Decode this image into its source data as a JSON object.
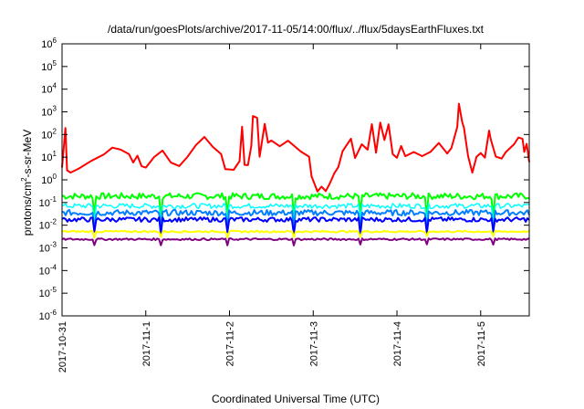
{
  "chart_data": {
    "type": "line",
    "title": "/data/run/goesPlots/archive/2017-11-05/14:00/flux/../flux/5daysEarthFluxes.txt",
    "xlabel": "Coordinated Universal Time (UTC)",
    "ylabel": {
      "base": "protons/cm",
      "sup": "2",
      "rest": "-s-sr-MeV"
    },
    "y_scale": "log",
    "ylim_exponent": [
      -6,
      6
    ],
    "y_ticks": [
      {
        "exp": -6,
        "mantissa": "10",
        "power": "-6"
      },
      {
        "exp": -5,
        "mantissa": "10",
        "power": "-5"
      },
      {
        "exp": -4,
        "mantissa": "10",
        "power": "-4"
      },
      {
        "exp": -3,
        "mantissa": "10",
        "power": "-3"
      },
      {
        "exp": -2,
        "mantissa": "10",
        "power": "-2"
      },
      {
        "exp": -1,
        "mantissa": "10",
        "power": "-1"
      },
      {
        "exp": 0,
        "mantissa": "10",
        "power": "0"
      },
      {
        "exp": 1,
        "mantissa": "10",
        "power": "1"
      },
      {
        "exp": 2,
        "mantissa": "10",
        "power": "2"
      },
      {
        "exp": 3,
        "mantissa": "10",
        "power": "3"
      },
      {
        "exp": 4,
        "mantissa": "10",
        "power": "4"
      },
      {
        "exp": 5,
        "mantissa": "10",
        "power": "5"
      },
      {
        "exp": 6,
        "mantissa": "10",
        "power": "6"
      }
    ],
    "x_range_days": [
      0,
      5.58
    ],
    "x_ticks": [
      {
        "day": 0,
        "label": "2017-10-31"
      },
      {
        "day": 1,
        "label": "2017-11-1"
      },
      {
        "day": 2,
        "label": "2017-11-2"
      },
      {
        "day": 3,
        "label": "2017-11-3"
      },
      {
        "day": 4,
        "label": "2017-11-4"
      },
      {
        "day": 5,
        "label": "2017-11-5"
      }
    ],
    "grid": false,
    "legend": "none",
    "series": [
      {
        "color": "#ff0000",
        "width": 2,
        "noise": 0.15,
        "points": [
          [
            0.0,
            0.5
          ],
          [
            0.04,
            2.3
          ],
          [
            0.06,
            0.4
          ],
          [
            0.1,
            0.3
          ],
          [
            0.2,
            0.45
          ],
          [
            0.35,
            0.9
          ],
          [
            0.5,
            1.2
          ],
          [
            0.6,
            1.45
          ],
          [
            0.7,
            1.3
          ],
          [
            0.8,
            1.15
          ],
          [
            0.85,
            0.8
          ],
          [
            0.9,
            1.0
          ],
          [
            0.95,
            0.65
          ],
          [
            1.0,
            0.6
          ],
          [
            1.1,
            1.05
          ],
          [
            1.2,
            1.25
          ],
          [
            1.3,
            0.8
          ],
          [
            1.4,
            0.55
          ],
          [
            1.5,
            1.0
          ],
          [
            1.6,
            1.6
          ],
          [
            1.7,
            1.9
          ],
          [
            1.8,
            1.5
          ],
          [
            1.9,
            1.2
          ],
          [
            1.95,
            0.5
          ],
          [
            2.05,
            0.4
          ],
          [
            2.12,
            0.8
          ],
          [
            2.15,
            2.3
          ],
          [
            2.18,
            0.6
          ],
          [
            2.22,
            0.7
          ],
          [
            2.26,
            1.5
          ],
          [
            2.28,
            2.75
          ],
          [
            2.33,
            2.8
          ],
          [
            2.36,
            1.0
          ],
          [
            2.42,
            2.5
          ],
          [
            2.46,
            1.6
          ],
          [
            2.5,
            1.7
          ],
          [
            2.6,
            1.5
          ],
          [
            2.7,
            1.7
          ],
          [
            2.85,
            1.3
          ],
          [
            2.95,
            1.0
          ],
          [
            2.98,
            0.2
          ],
          [
            3.05,
            -0.5
          ],
          [
            3.1,
            -0.3
          ],
          [
            3.15,
            -0.55
          ],
          [
            3.2,
            -0.2
          ],
          [
            3.25,
            0.3
          ],
          [
            3.3,
            0.5
          ],
          [
            3.35,
            1.2
          ],
          [
            3.45,
            1.8
          ],
          [
            3.5,
            0.9
          ],
          [
            3.58,
            1.5
          ],
          [
            3.65,
            1.3
          ],
          [
            3.7,
            2.5
          ],
          [
            3.75,
            1.2
          ],
          [
            3.8,
            2.6
          ],
          [
            3.85,
            1.8
          ],
          [
            3.9,
            2.4
          ],
          [
            3.95,
            1.2
          ],
          [
            4.0,
            1.0
          ],
          [
            4.05,
            1.5
          ],
          [
            4.1,
            1.1
          ],
          [
            4.2,
            1.3
          ],
          [
            4.3,
            1.0
          ],
          [
            4.4,
            1.2
          ],
          [
            4.5,
            1.6
          ],
          [
            4.6,
            1.2
          ],
          [
            4.65,
            1.45
          ],
          [
            4.72,
            2.3
          ],
          [
            4.74,
            3.4
          ],
          [
            4.78,
            2.6
          ],
          [
            4.8,
            2.3
          ],
          [
            4.85,
            1.1
          ],
          [
            4.9,
            0.3
          ],
          [
            4.95,
            1.0
          ],
          [
            5.0,
            1.2
          ],
          [
            5.05,
            1.0
          ],
          [
            5.1,
            2.2
          ],
          [
            5.12,
            1.8
          ],
          [
            5.18,
            1.0
          ],
          [
            5.25,
            1.0
          ],
          [
            5.3,
            1.2
          ],
          [
            5.4,
            1.5
          ],
          [
            5.45,
            1.9
          ],
          [
            5.5,
            1.8
          ],
          [
            5.52,
            1.2
          ],
          [
            5.55,
            1.6
          ],
          [
            5.58,
            0.8
          ]
        ]
      },
      {
        "color": "#00ff00",
        "width": 2,
        "base": -0.72,
        "noise": 0.28
      },
      {
        "color": "#00ffff",
        "width": 1.5,
        "base": -1.15,
        "noise": 0.22
      },
      {
        "color": "#0080ff",
        "width": 2,
        "base": -1.45,
        "noise": 0.25
      },
      {
        "color": "#0000ff",
        "width": 2,
        "base": -1.75,
        "noise": 0.2
      },
      {
        "color": "#ffff00",
        "width": 2,
        "base": -2.28,
        "noise": 0.08
      },
      {
        "color": "#800080",
        "width": 2,
        "base": -2.62,
        "noise": 0.08
      }
    ]
  }
}
